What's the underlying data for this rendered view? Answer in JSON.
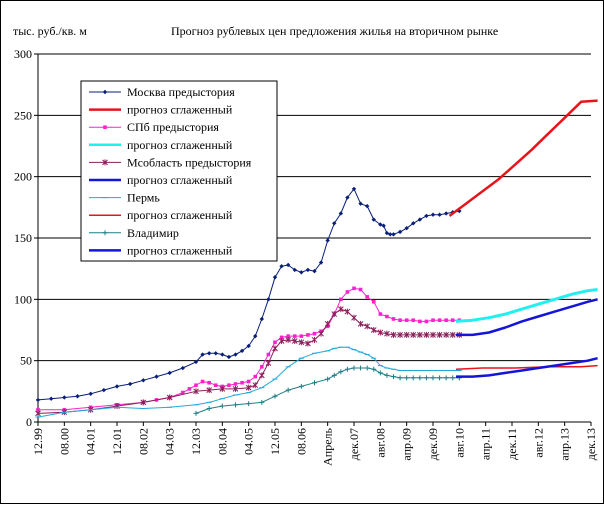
{
  "chart_data": {
    "type": "line",
    "title": "Прогноз рублевых цен предложения жилья на вторичном рынке",
    "ylabel": "тыс. руб./кв. м",
    "ylim": [
      0,
      300
    ],
    "yticks": [
      0,
      50,
      100,
      150,
      200,
      250,
      300
    ],
    "x_tick_labels": [
      "12.99",
      "08.00",
      "04.01",
      "12.01",
      "08.02",
      "04.03",
      "12.03",
      "08.04",
      "04.05",
      "12.05",
      "08.06",
      "Апрель",
      "дек.07",
      "авг.08",
      "апр.09",
      "дек.09",
      "авг.10",
      "апр.11",
      "дек.11",
      "авг.12",
      "апр.13",
      "дек.13"
    ],
    "x_axis_index_range": [
      0,
      168
    ],
    "x_ticks_index": [
      0,
      8,
      16,
      24,
      32,
      40,
      48,
      56,
      64,
      72,
      80,
      88,
      96,
      104,
      112,
      120,
      128,
      136,
      144,
      152,
      160,
      168
    ],
    "grid": "horizontal",
    "legend_placement": "top-left",
    "series": [
      {
        "name": "Москва предыстория",
        "color": "#0a1f78",
        "marker": "diamond",
        "width": 1,
        "x": [
          0,
          4,
          8,
          12,
          16,
          20,
          24,
          28,
          32,
          36,
          40,
          44,
          48,
          50,
          52,
          54,
          56,
          58,
          60,
          62,
          64,
          66,
          68,
          70,
          72,
          74,
          76,
          78,
          80,
          82,
          84,
          86,
          88,
          90,
          92,
          94,
          96,
          98,
          100,
          102,
          104,
          105,
          106,
          107,
          108,
          110,
          112,
          114,
          116,
          118,
          120,
          122,
          124,
          126,
          128
        ],
        "y": [
          18,
          19,
          20,
          21,
          23,
          26,
          29,
          31,
          34,
          37,
          40,
          44,
          49,
          55,
          56,
          56,
          55,
          53,
          55,
          58,
          62,
          70,
          84,
          100,
          118,
          127,
          128,
          124,
          122,
          124,
          123,
          130,
          148,
          162,
          170,
          183,
          190,
          178,
          176,
          165,
          161,
          160,
          154,
          153,
          153,
          155,
          158,
          162,
          165,
          168,
          169,
          169,
          170,
          171,
          172
        ]
      },
      {
        "name": "прогноз сглаженный",
        "color": "#e8141a",
        "marker": "none",
        "width": 2.5,
        "x": [
          125,
          130,
          135,
          140,
          145,
          150,
          155,
          160,
          165,
          170
        ],
        "y": [
          168,
          178,
          188,
          198,
          210,
          222,
          235,
          248,
          261,
          262
        ]
      },
      {
        "name": "СПб предыстория",
        "color": "#ff22cc",
        "marker": "square",
        "width": 1,
        "x": [
          0,
          8,
          16,
          24,
          32,
          36,
          40,
          44,
          46,
          48,
          50,
          52,
          54,
          56,
          58,
          60,
          62,
          64,
          66,
          68,
          70,
          72,
          74,
          76,
          78,
          80,
          82,
          84,
          86,
          88,
          90,
          92,
          94,
          96,
          98,
          100,
          102,
          104,
          106,
          108,
          110,
          112,
          114,
          116,
          118,
          120,
          122,
          124,
          126,
          128
        ],
        "y": [
          10,
          10,
          12,
          14,
          16,
          18,
          20,
          24,
          27,
          30,
          33,
          32,
          30,
          29,
          30,
          31,
          32,
          33,
          37,
          45,
          55,
          65,
          69,
          70,
          70,
          70,
          71,
          72,
          74,
          78,
          88,
          100,
          106,
          109,
          108,
          102,
          98,
          88,
          86,
          84,
          83,
          83,
          83,
          82,
          82,
          83,
          83,
          83,
          83,
          83
        ]
      },
      {
        "name": "прогноз сглаженный",
        "color": "#22f0f0",
        "marker": "none",
        "width": 3,
        "x": [
          127,
          132,
          137,
          142,
          147,
          152,
          157,
          162,
          167,
          170
        ],
        "y": [
          82,
          83,
          85,
          88,
          92,
          96,
          100,
          104,
          107,
          108
        ]
      },
      {
        "name": "Мсобласть предыстория",
        "color": "#8a1f5a",
        "marker": "star",
        "width": 1,
        "x": [
          0,
          8,
          16,
          24,
          32,
          40,
          48,
          52,
          56,
          60,
          64,
          66,
          68,
          70,
          72,
          74,
          76,
          78,
          80,
          82,
          84,
          86,
          88,
          90,
          92,
          94,
          96,
          98,
          100,
          102,
          104,
          106,
          108,
          110,
          112,
          114,
          116,
          118,
          120,
          122,
          124,
          126,
          128
        ],
        "y": [
          7,
          8,
          10,
          13,
          16,
          20,
          25,
          26,
          27,
          27,
          28,
          30,
          38,
          48,
          60,
          66,
          67,
          66,
          65,
          64,
          67,
          72,
          80,
          88,
          92,
          90,
          85,
          80,
          78,
          75,
          73,
          72,
          71,
          71,
          71,
          71,
          71,
          71,
          71,
          71,
          71,
          71,
          71
        ]
      },
      {
        "name": "прогноз сглаженный",
        "color": "#1515d8",
        "marker": "none",
        "width": 2.5,
        "x": [
          127,
          132,
          137,
          142,
          147,
          152,
          157,
          162,
          167,
          170
        ],
        "y": [
          71,
          71,
          73,
          77,
          82,
          86,
          90,
          94,
          98,
          100
        ]
      },
      {
        "name": "Пермь",
        "color": "#22aadd",
        "marker": "dash",
        "width": 1,
        "x": [
          0,
          8,
          16,
          24,
          32,
          40,
          48,
          52,
          56,
          60,
          64,
          68,
          72,
          76,
          80,
          84,
          88,
          90,
          92,
          94,
          96,
          98,
          100,
          102,
          104,
          106,
          108,
          110,
          112,
          114,
          116,
          118,
          120,
          122,
          124,
          126,
          128
        ],
        "y": [
          4,
          8,
          10,
          12,
          11,
          12,
          14,
          16,
          19,
          22,
          24,
          28,
          35,
          45,
          52,
          56,
          58,
          60,
          61,
          61,
          59,
          57,
          55,
          52,
          46,
          44,
          43,
          42,
          42,
          42,
          42,
          42,
          42,
          42,
          42,
          42,
          42
        ]
      },
      {
        "name": "прогноз сглаженный",
        "color": "#e8141a",
        "marker": "none",
        "width": 1.5,
        "x": [
          127,
          135,
          145,
          155,
          165,
          170
        ],
        "y": [
          43,
          44,
          44,
          45,
          45,
          46
        ]
      },
      {
        "name": "Владимир",
        "color": "#1f7f86",
        "marker": "plus",
        "width": 1,
        "x": [
          48,
          52,
          56,
          60,
          64,
          68,
          72,
          76,
          80,
          84,
          88,
          90,
          92,
          94,
          96,
          98,
          100,
          102,
          104,
          106,
          108,
          110,
          112,
          114,
          116,
          118,
          120,
          122,
          124,
          126,
          128
        ],
        "y": [
          7,
          11,
          13,
          14,
          15,
          16,
          21,
          26,
          29,
          32,
          35,
          38,
          41,
          43,
          44,
          44,
          44,
          43,
          40,
          38,
          37,
          36,
          36,
          36,
          36,
          36,
          36,
          36,
          36,
          36,
          36
        ]
      },
      {
        "name": "прогноз сглаженный",
        "color": "#1515d8",
        "marker": "none",
        "width": 2.5,
        "x": [
          127,
          132,
          137,
          142,
          147,
          152,
          157,
          162,
          167,
          170
        ],
        "y": [
          37,
          37,
          38,
          40,
          42,
          44,
          46,
          48,
          50,
          52
        ]
      }
    ]
  }
}
